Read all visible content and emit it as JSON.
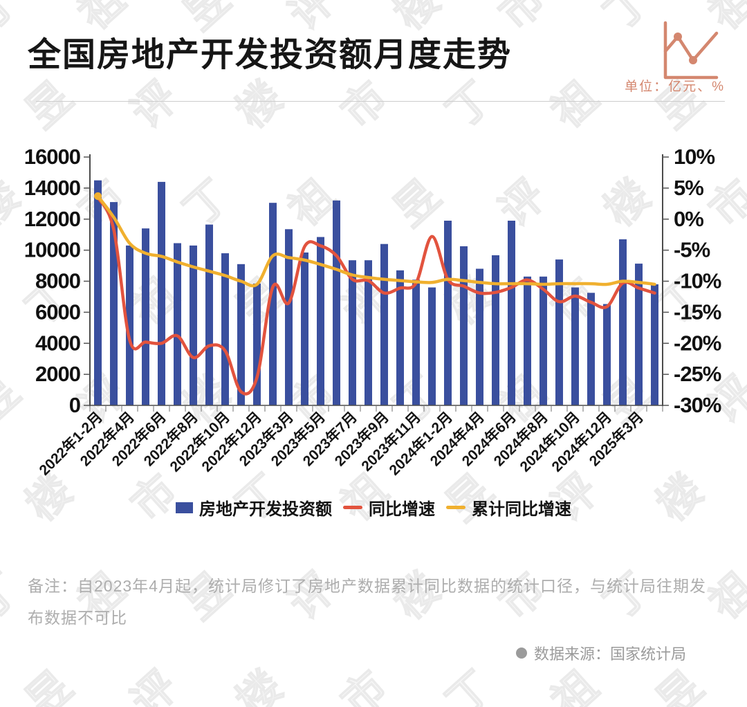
{
  "header": {
    "title": "全国房地产开发投资额月度走势",
    "unit_label": "单位：亿元、%"
  },
  "watermark_chars": [
    "丁",
    "祖",
    "昱",
    "评",
    "楼",
    "市"
  ],
  "chart_data": {
    "type": "bar",
    "subtype": "bar+line combo, dual axis",
    "categories": [
      "2022年1-2月",
      "",
      "2022年4月",
      "",
      "2022年6月",
      "",
      "2022年8月",
      "",
      "2022年10月",
      "",
      "2022年12月",
      "",
      "2023年3月",
      "",
      "2023年5月",
      "",
      "2023年7月",
      "",
      "2023年9月",
      "",
      "2023年11月",
      "",
      "2024年1-2月",
      "",
      "2024年4月",
      "",
      "2024年6月",
      "",
      "2024年8月",
      "",
      "2024年10月",
      "",
      "2024年12月",
      "",
      "2025年3月",
      ""
    ],
    "series": [
      {
        "name": "房地产开发投资额",
        "type": "bar",
        "axis": "left",
        "color": "#3a4f9e",
        "values": [
          14500,
          13100,
          10300,
          11400,
          14400,
          10450,
          10300,
          11650,
          9800,
          9100,
          7850,
          13050,
          11350,
          9850,
          10850,
          13200,
          9350,
          9350,
          10400,
          8700,
          8100,
          7600,
          11900,
          10250,
          8800,
          9670,
          11900,
          8300,
          8300,
          9400,
          7600,
          7250,
          6530,
          10700,
          9130,
          7800
        ]
      },
      {
        "name": "同比增速",
        "type": "line",
        "axis": "right",
        "color": "#e2533e",
        "values": [
          3.5,
          -1.7,
          -19.5,
          -19.8,
          -20.0,
          -18.8,
          -22.3,
          -20.4,
          -21.2,
          -27.8,
          -25.5,
          -10.9,
          -13.5,
          -4.4,
          -4.3,
          -5.9,
          -9.7,
          -9.9,
          -11.9,
          -11.1,
          -10.3,
          -2.8,
          -9.7,
          -10.8,
          -11.9,
          -11.8,
          -11.0,
          -9.8,
          -11.3,
          -13.3,
          -12.4,
          -13.4,
          -14.1,
          -10.3,
          -11.1,
          -11.9
        ]
      },
      {
        "name": "累计同比增速",
        "type": "line",
        "axis": "right",
        "color": "#f0b02f",
        "values": [
          3.7,
          0.3,
          -3.9,
          -5.5,
          -6.0,
          -6.9,
          -7.7,
          -8.4,
          -9.1,
          -10.0,
          -10.5,
          -5.9,
          -6.2,
          -6.6,
          -7.3,
          -8.1,
          -9.0,
          -9.4,
          -9.7,
          -9.9,
          -10.1,
          -10.2,
          -9.7,
          -9.9,
          -10.2,
          -10.4,
          -10.4,
          -10.4,
          -10.5,
          -10.4,
          -10.4,
          -10.4,
          -10.5,
          -10.0,
          -10.2,
          -10.5
        ]
      }
    ],
    "left_axis": {
      "min": 0,
      "max": 16000,
      "step": 2000
    },
    "right_axis": {
      "min": -30,
      "max": 10,
      "step": 5,
      "suffix": "%"
    },
    "grid": false,
    "legend_position": "bottom",
    "title": "全国房地产开发投资额月度走势",
    "xlabel": "",
    "ylabel": ""
  },
  "note": {
    "line1": "备注：自2023年4月起，统计局修订了房地产数据累计同比数据的统计口径，与统计局往期发",
    "line2": "布数据不可比"
  },
  "source": {
    "bullet": "●",
    "text": "数据来源：国家统计局"
  }
}
